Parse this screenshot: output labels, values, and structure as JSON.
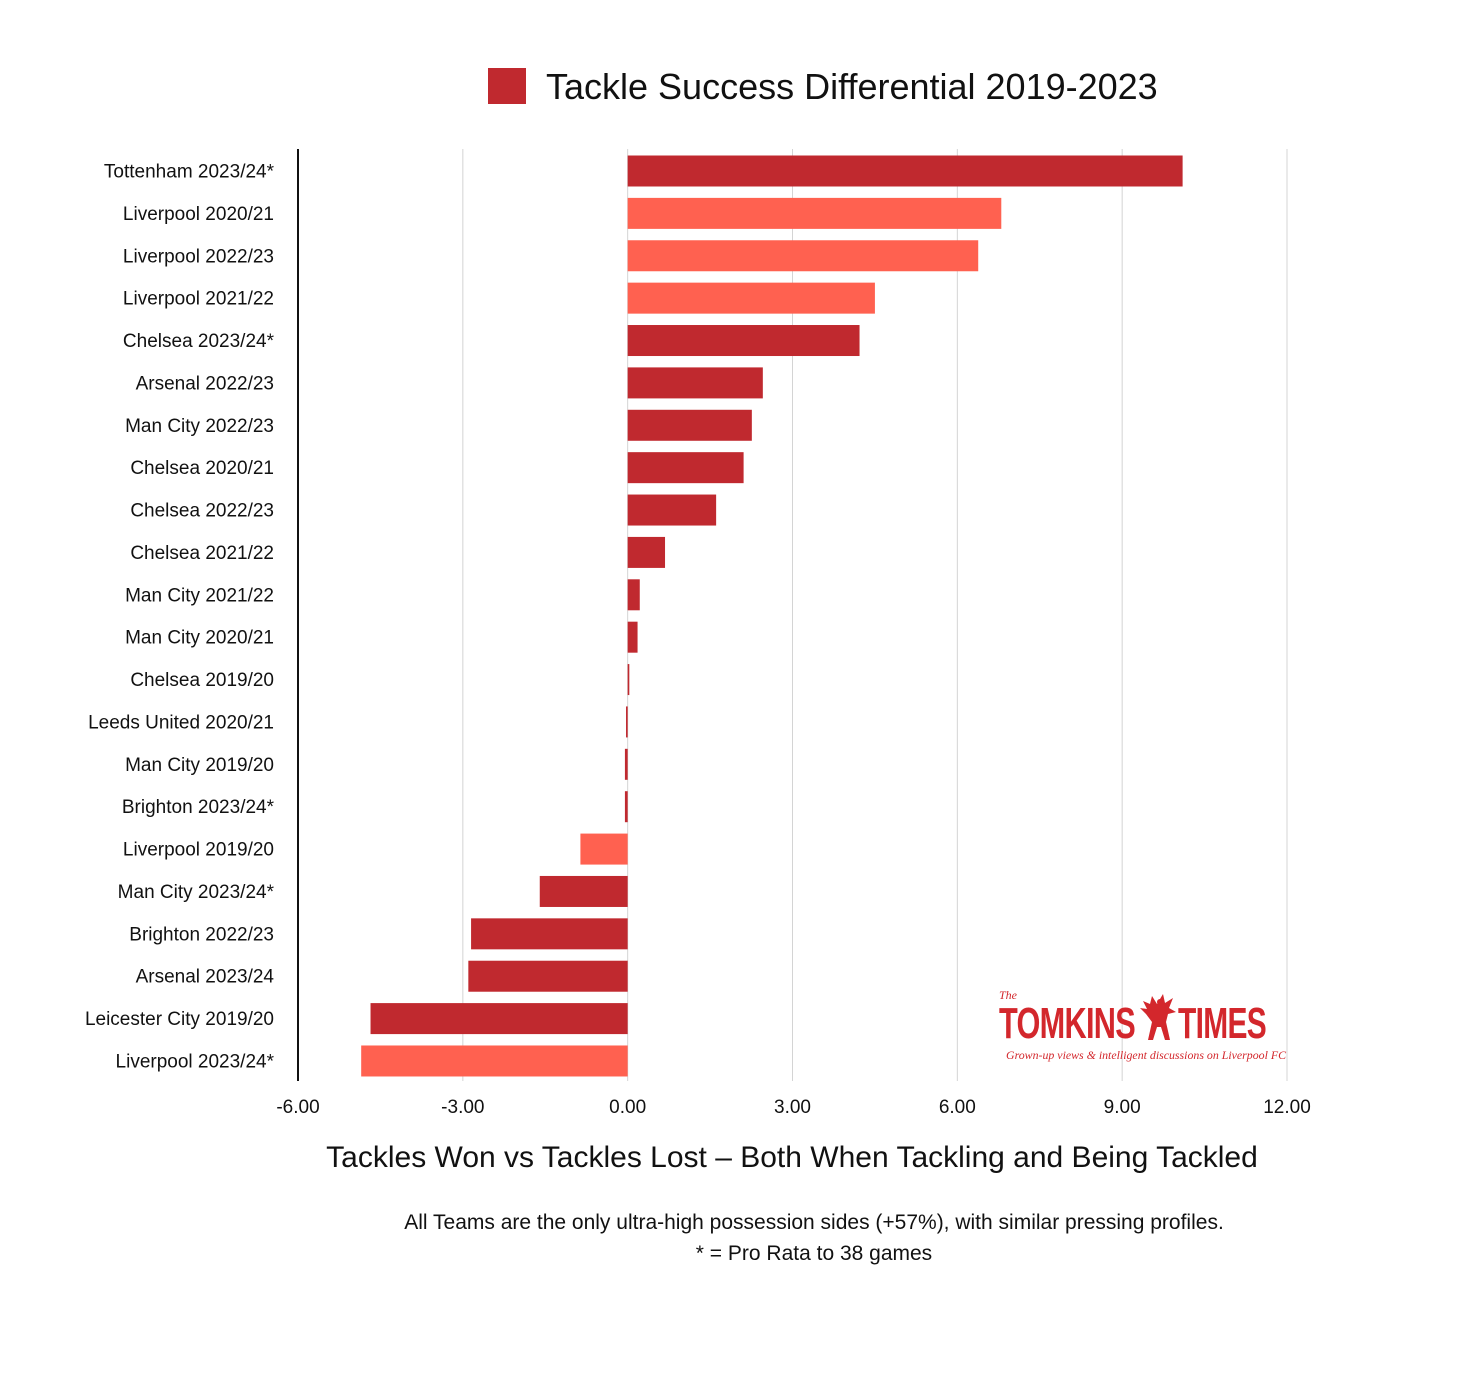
{
  "colors": {
    "default_bar": "#c0292f",
    "highlight_bar": "#ff6150",
    "gridline": "#d4d4d4",
    "axis": "#111111",
    "logo": "#d3272c"
  },
  "chart_data": {
    "type": "bar",
    "orientation": "horizontal",
    "title": "",
    "legend": {
      "label": "Tackle Success Differential 2019-2023",
      "position": "top-center",
      "color": "#c0292f"
    },
    "xlabel": "Tackles Won vs Tackles Lost – Both When Tackling and Being Tackled",
    "ylabel": "",
    "xlim": [
      -6,
      12
    ],
    "xticks": [
      -6,
      -3,
      0,
      3,
      6,
      9,
      12
    ],
    "xtick_labels": [
      "-6.00",
      "-3.00",
      "0.00",
      "3.00",
      "6.00",
      "9.00",
      "12.00"
    ],
    "grid": true,
    "categories": [
      "Tottenham 2023/24*",
      "Liverpool 2020/21",
      "Liverpool 2022/23",
      "Liverpool 2021/22",
      "Chelsea 2023/24*",
      "Arsenal 2022/23",
      "Man City 2022/23",
      "Chelsea 2020/21",
      "Chelsea 2022/23",
      "Chelsea 2021/22",
      "Man City 2021/22",
      "Man City 2020/21",
      "Chelsea 2019/20",
      "Leeds United 2020/21",
      "Man City 2019/20",
      "Brighton 2023/24*",
      "Liverpool 2019/20",
      "Man City 2023/24*",
      "Brighton 2022/23",
      "Arsenal 2023/24",
      "Leicester City 2019/20",
      "Liverpool 2023/24*"
    ],
    "values": [
      10.1,
      6.8,
      6.38,
      4.5,
      4.22,
      2.46,
      2.26,
      2.11,
      1.61,
      0.68,
      0.22,
      0.18,
      0.03,
      -0.03,
      -0.05,
      -0.05,
      -0.86,
      -1.6,
      -2.85,
      -2.9,
      -4.68,
      -4.85
    ],
    "highlighted": [
      false,
      true,
      true,
      true,
      false,
      false,
      false,
      false,
      false,
      false,
      false,
      false,
      false,
      false,
      false,
      false,
      true,
      false,
      false,
      false,
      false,
      true
    ],
    "notes": [
      "All Teams are the only ultra-high possession sides (+57%), with similar pressing profiles.",
      "* = Pro Rata to 38 games"
    ]
  },
  "logo": {
    "the": "The",
    "left": "TOMKINS",
    "right": "TIMES",
    "tagline": "Grown-up views & intelligent discussions on Liverpool FC",
    "icon": "liverbird-icon"
  }
}
